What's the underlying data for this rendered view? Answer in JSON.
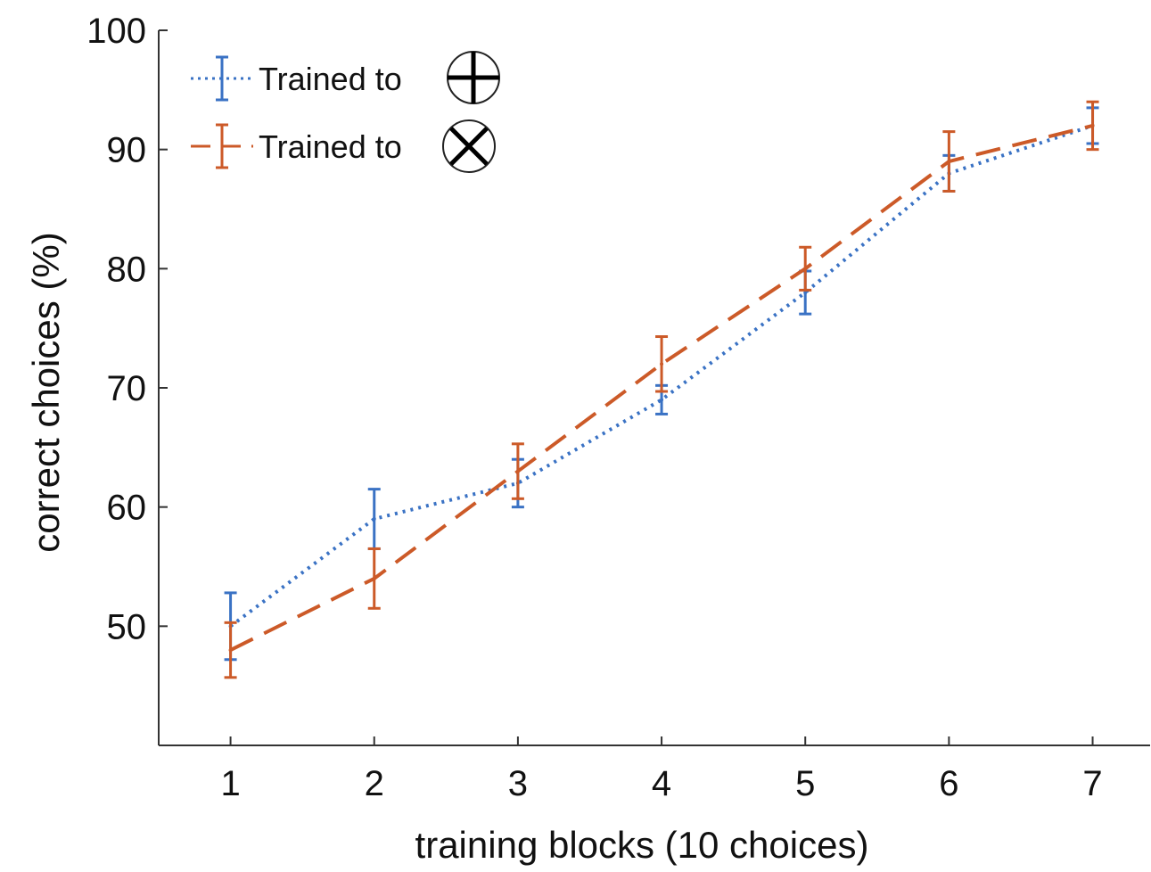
{
  "chart_data": {
    "type": "line",
    "title": "",
    "xlabel": "training blocks (10 choices)",
    "ylabel": "correct choices (%)",
    "x": [
      1,
      2,
      3,
      4,
      5,
      6,
      7
    ],
    "xlim": [
      0.5,
      7.4
    ],
    "ylim": [
      40,
      100
    ],
    "yticks": [
      50,
      60,
      70,
      80,
      90,
      100
    ],
    "grid": false,
    "legend_position": "top-left",
    "series": [
      {
        "name": "Trained to",
        "symbol": "plus-in-circle",
        "color": "#3a72c4",
        "line_style": "dotted",
        "values": [
          50,
          59,
          62,
          69,
          78,
          88,
          92
        ],
        "error": [
          2.8,
          2.5,
          2,
          1.2,
          1.8,
          1.5,
          1.5
        ]
      },
      {
        "name": "Trained to",
        "symbol": "cross-in-circle",
        "color": "#cc5a28",
        "line_style": "dashed",
        "values": [
          48,
          54,
          63,
          72,
          80,
          89,
          92
        ],
        "error": [
          2.3,
          2.5,
          2.3,
          2.3,
          1.8,
          2.5,
          2
        ]
      }
    ]
  }
}
